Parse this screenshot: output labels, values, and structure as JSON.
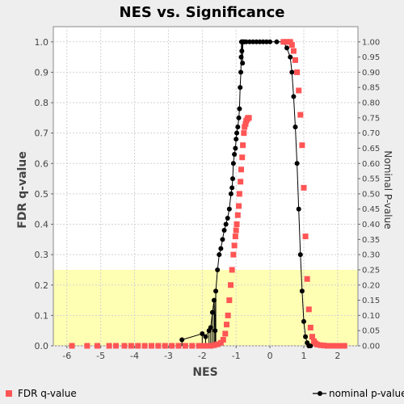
{
  "chart_data": {
    "type": "scatter",
    "title": "NES vs. Significance",
    "xlabel": "NES",
    "ylabel": "FDR q-value",
    "ylabel_right": "Nominal P-value",
    "xlim": [
      -6.4,
      2.6
    ],
    "ylim": [
      0,
      1.05
    ],
    "ylim_right": [
      0,
      1.05
    ],
    "x_ticks": [
      "-6",
      "-5",
      "-4",
      "-3",
      "-2",
      "-1",
      "0",
      "1",
      "2"
    ],
    "y_ticks": [
      "0.0",
      "0.1",
      "0.2",
      "0.3",
      "0.4",
      "0.5",
      "0.6",
      "0.7",
      "0.8",
      "0.9",
      "1.0"
    ],
    "y_ticks_right": [
      "0.00",
      "0.05",
      "0.10",
      "0.15",
      "0.20",
      "0.25",
      "0.30",
      "0.35",
      "0.40",
      "0.45",
      "0.50",
      "0.55",
      "0.60",
      "0.65",
      "0.70",
      "0.75",
      "0.80",
      "0.85",
      "0.90",
      "0.95",
      "1.00"
    ],
    "grid": true,
    "highlight_band": {
      "y_from": 0,
      "y_to": 0.25,
      "color": "#ffffb4"
    },
    "legend": [
      {
        "label": "FDR q-value",
        "color": "#ff5555"
      },
      {
        "label": "nominal p-value",
        "color": "#000000"
      }
    ],
    "series": [
      {
        "name": "FDR q-value",
        "color": "#ff5555",
        "marker": "square",
        "x": [
          -5.85,
          -5.4,
          -5.1,
          -4.75,
          -4.55,
          -4.3,
          -4.1,
          -3.9,
          -3.7,
          -3.5,
          -3.3,
          -3.1,
          -2.9,
          -2.7,
          -2.5,
          -2.3,
          -2.1,
          -1.95,
          -1.85,
          -1.75,
          -1.65,
          -1.55,
          -1.45,
          -1.38,
          -1.32,
          -1.28,
          -1.24,
          -1.2,
          -1.16,
          -1.12,
          -1.08,
          -1.05,
          -1.02,
          -1.0,
          -0.98,
          -0.95,
          -0.92,
          -0.9,
          -0.87,
          -0.85,
          -0.82,
          -0.8,
          -0.77,
          -0.75,
          -0.72,
          -0.7,
          -0.67,
          -0.65,
          -0.62,
          0.4,
          0.5,
          0.6,
          0.65,
          0.7,
          0.75,
          0.8,
          0.85,
          0.9,
          0.95,
          1.0,
          1.05,
          1.1,
          1.15,
          1.2,
          1.25,
          1.3,
          1.35,
          1.4,
          1.5,
          1.6,
          1.7,
          1.8,
          1.9,
          2.0,
          2.1,
          2.2
        ],
        "y": [
          0.0,
          0.0,
          0.0,
          0.0,
          0.0,
          0.0,
          0.0,
          0.0,
          0.0,
          0.0,
          0.0,
          0.0,
          0.0,
          0.0,
          0.0,
          0.0,
          0.0,
          0.0,
          0.0,
          0.0,
          0.002,
          0.005,
          0.01,
          0.02,
          0.04,
          0.07,
          0.1,
          0.15,
          0.2,
          0.25,
          0.3,
          0.33,
          0.36,
          0.38,
          0.4,
          0.43,
          0.46,
          0.5,
          0.54,
          0.58,
          0.62,
          0.66,
          0.7,
          0.72,
          0.73,
          0.74,
          0.745,
          0.75,
          0.75,
          1.0,
          1.0,
          1.0,
          0.99,
          0.97,
          0.94,
          0.9,
          0.84,
          0.76,
          0.66,
          0.52,
          0.36,
          0.22,
          0.12,
          0.06,
          0.03,
          0.015,
          0.008,
          0.004,
          0.002,
          0.001,
          0.0,
          0.0,
          0.0,
          0.0,
          0.0,
          0.0
        ]
      },
      {
        "name": "nominal p-value",
        "color": "#000000",
        "marker": "circle",
        "x": [
          -2.6,
          -2.0,
          -1.9,
          -1.8,
          -1.75,
          -1.7,
          -1.65,
          -1.62,
          -1.6,
          -1.55,
          -1.5,
          -1.45,
          -1.4,
          -1.35,
          -1.3,
          -1.25,
          -1.2,
          -1.15,
          -1.12,
          -1.1,
          -1.08,
          -1.05,
          -1.02,
          -1.0,
          -0.98,
          -0.95,
          -0.92,
          -0.9,
          -0.88,
          -0.86,
          -0.85,
          -0.84,
          -0.83,
          -0.82,
          -0.81,
          -0.8,
          -0.78,
          -0.75,
          -0.7,
          -0.6,
          -0.5,
          -0.4,
          -0.3,
          -0.2,
          -0.1,
          0.0,
          0.2,
          0.4,
          0.5,
          0.6,
          0.65,
          0.7,
          0.75,
          0.8,
          0.85,
          0.9,
          0.95,
          1.0,
          1.05,
          1.1,
          1.15,
          1.2
        ],
        "y": [
          0.02,
          0.04,
          0.03,
          0.05,
          0.06,
          0.11,
          0.15,
          0.05,
          0.18,
          0.25,
          0.3,
          0.32,
          0.35,
          0.38,
          0.4,
          0.42,
          0.45,
          0.5,
          0.52,
          0.55,
          0.6,
          0.63,
          0.65,
          0.68,
          0.7,
          0.72,
          0.75,
          0.78,
          0.85,
          0.9,
          0.95,
          1.0,
          0.97,
          1.0,
          0.93,
          1.0,
          1.0,
          1.0,
          1.0,
          1.0,
          1.0,
          1.0,
          1.0,
          1.0,
          1.0,
          1.0,
          1.0,
          1.0,
          0.98,
          0.95,
          0.9,
          0.82,
          0.72,
          0.6,
          0.45,
          0.3,
          0.18,
          0.08,
          0.03,
          0.01,
          0.0,
          0.0
        ]
      }
    ]
  }
}
